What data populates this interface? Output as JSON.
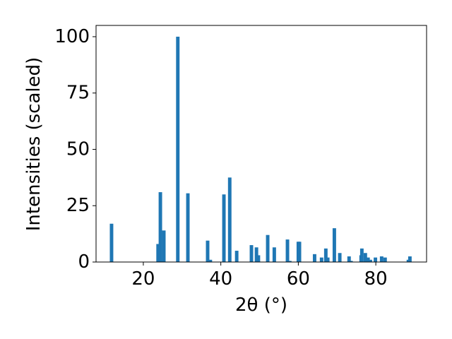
{
  "chart_data": {
    "type": "bar",
    "x_label": "2θ (°)",
    "y_label": "Intensities (scaled)",
    "x": [
      11.8,
      23.8,
      24.4,
      25.3,
      28.9,
      31.5,
      36.6,
      37.3,
      40.8,
      42.3,
      44.1,
      47.9,
      49.2,
      49.7,
      52.1,
      53.8,
      57.2,
      57.8,
      60.0,
      60.3,
      64.2,
      66.0,
      67.1,
      67.6,
      69.3,
      70.7,
      73.1,
      73.6,
      76.2,
      76.4,
      77.3,
      78.0,
      78.6,
      79.9,
      81.5,
      82.4,
      88.4,
      88.8
    ],
    "values": [
      17,
      8,
      31,
      14,
      100,
      30.5,
      9.5,
      1,
      30,
      37.5,
      5,
      7.5,
      6.5,
      3,
      12,
      6.5,
      10,
      0.5,
      9,
      9,
      3.5,
      2,
      6,
      2,
      15,
      4,
      2.5,
      0.5,
      3,
      6,
      4,
      2,
      1,
      2,
      2.5,
      2,
      1,
      2.5
    ],
    "color": "#1f77b4",
    "xlim": [
      7.8,
      93.1
    ],
    "ylim": [
      0,
      105
    ],
    "xticks": [
      20,
      40,
      60,
      80
    ],
    "yticks": [
      0,
      25,
      50,
      75,
      100
    ]
  }
}
